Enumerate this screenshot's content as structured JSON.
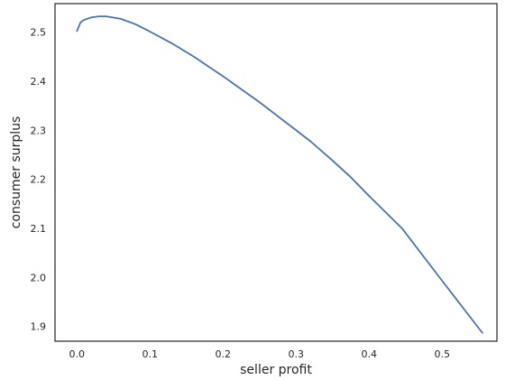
{
  "chart_data": {
    "type": "line",
    "title": "",
    "xlabel": "seller profit",
    "ylabel": "consumer surplus",
    "xlim": [
      -0.03,
      0.575
    ],
    "ylim": [
      1.87,
      2.558
    ],
    "xticks": [
      0.0,
      0.1,
      0.2,
      0.3,
      0.4,
      0.5
    ],
    "xtick_labels": [
      "0.0",
      "0.1",
      "0.2",
      "0.3",
      "0.4",
      "0.5"
    ],
    "yticks": [
      1.9,
      2.0,
      2.1,
      2.2,
      2.3,
      2.4,
      2.5
    ],
    "ytick_labels": [
      "1.9",
      "2.0",
      "2.1",
      "2.2",
      "2.3",
      "2.4",
      "2.5"
    ],
    "grid": false,
    "legend": "none",
    "line_color": "#4c72b0",
    "series": [
      {
        "x": [
          0.0,
          0.005,
          0.01,
          0.02,
          0.03,
          0.04,
          0.06,
          0.08,
          0.1,
          0.13,
          0.16,
          0.2,
          0.25,
          0.3,
          0.32,
          0.35,
          0.375,
          0.4,
          0.445,
          0.5,
          0.555
        ],
        "y": [
          2.502,
          2.52,
          2.525,
          2.53,
          2.532,
          2.532,
          2.527,
          2.516,
          2.501,
          2.477,
          2.45,
          2.41,
          2.357,
          2.3,
          2.277,
          2.238,
          2.204,
          2.166,
          2.1,
          1.993,
          1.887
        ]
      }
    ]
  }
}
